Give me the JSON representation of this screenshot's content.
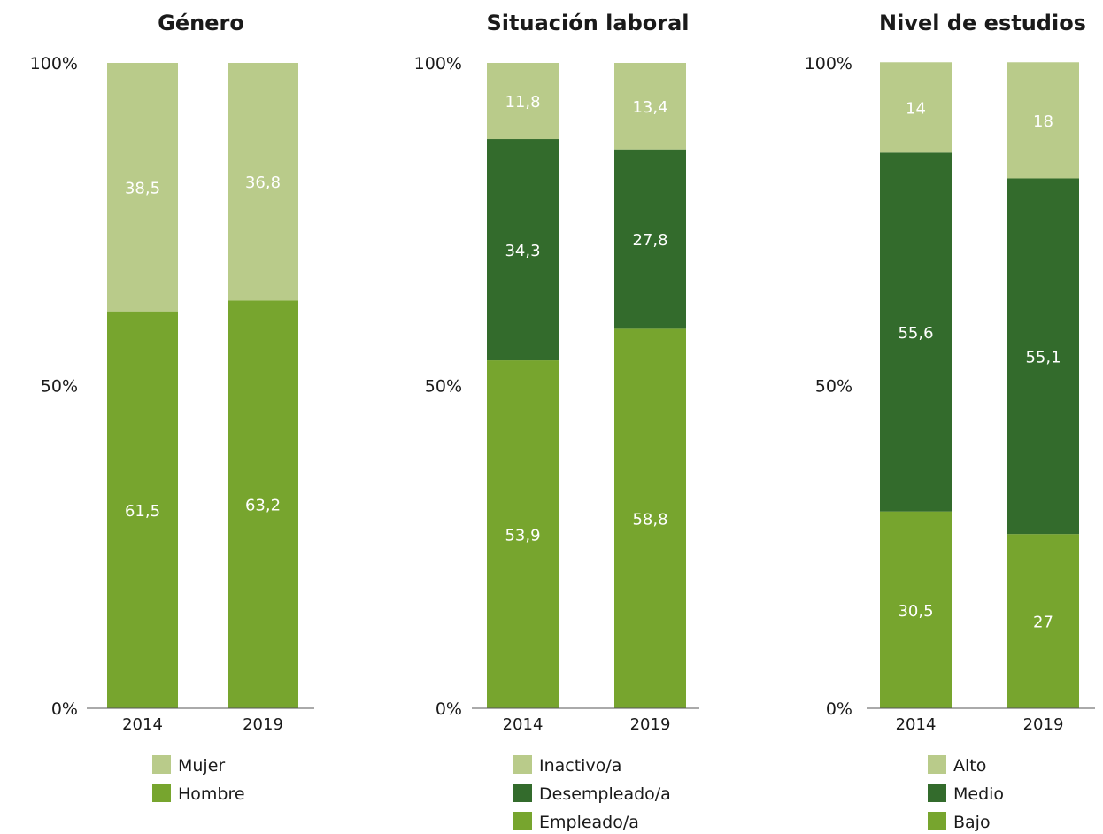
{
  "colors": {
    "light": "#b9cb8a",
    "dark": "#336b2c",
    "mid": "#77a52e",
    "axis": "#555555"
  },
  "chart_data": [
    {
      "type": "bar",
      "stacked": true,
      "title": "Género",
      "categories": [
        "2014",
        "2019"
      ],
      "yticks": [
        "0%",
        "50%",
        "100%"
      ],
      "ylim": [
        0,
        100
      ],
      "series": [
        {
          "name": "Hombre",
          "color_key": "mid",
          "values": [
            61.5,
            63.2
          ],
          "labels": [
            "61,5",
            "63,2"
          ]
        },
        {
          "name": "Mujer",
          "color_key": "light",
          "values": [
            38.5,
            36.8
          ],
          "labels": [
            "38,5",
            "36,8"
          ]
        }
      ],
      "legend": [
        "Mujer",
        "Hombre"
      ]
    },
    {
      "type": "bar",
      "stacked": true,
      "title": "Situación laboral",
      "categories": [
        "2014",
        "2019"
      ],
      "yticks": [
        "0%",
        "50%",
        "100%"
      ],
      "ylim": [
        0,
        100
      ],
      "series": [
        {
          "name": "Empleado/a",
          "color_key": "mid",
          "values": [
            53.9,
            58.8
          ],
          "labels": [
            "53,9",
            "58,8"
          ]
        },
        {
          "name": "Desempleado/a",
          "color_key": "dark",
          "values": [
            34.3,
            27.8
          ],
          "labels": [
            "34,3",
            "27,8"
          ]
        },
        {
          "name": "Inactivo/a",
          "color_key": "light",
          "values": [
            11.8,
            13.4
          ],
          "labels": [
            "11,8",
            "13,4"
          ]
        }
      ],
      "legend": [
        "Inactivo/a",
        "Desempleado/a",
        "Empleado/a"
      ]
    },
    {
      "type": "bar",
      "stacked": true,
      "title": "Nivel de estudios",
      "categories": [
        "2014",
        "2019"
      ],
      "yticks": [
        "0%",
        "50%",
        "100%"
      ],
      "ylim": [
        0,
        100
      ],
      "series": [
        {
          "name": "Bajo",
          "color_key": "mid",
          "values": [
            30.5,
            27
          ],
          "labels": [
            "30,5",
            "27"
          ]
        },
        {
          "name": "Medio",
          "color_key": "dark",
          "values": [
            55.6,
            55.1
          ],
          "labels": [
            "55,6",
            "55,1"
          ]
        },
        {
          "name": "Alto",
          "color_key": "light",
          "values": [
            14,
            18
          ],
          "labels": [
            "14",
            "18"
          ]
        }
      ],
      "legend": [
        "Alto",
        "Medio",
        "Bajo"
      ]
    }
  ]
}
